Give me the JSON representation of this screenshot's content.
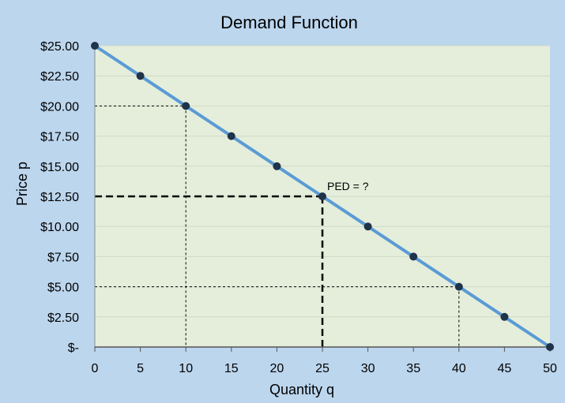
{
  "chart_data": {
    "type": "line",
    "title": "Demand Function",
    "xlabel": "Quantity q",
    "ylabel": "Price p",
    "xlim": [
      0,
      50
    ],
    "ylim": [
      0,
      25
    ],
    "x_ticks": [
      0,
      5,
      10,
      15,
      20,
      25,
      30,
      35,
      40,
      45,
      50
    ],
    "x_tick_labels": [
      "0",
      "5",
      "10",
      "15",
      "20",
      "25",
      "30",
      "35",
      "40",
      "45",
      "50"
    ],
    "y_ticks": [
      0,
      2.5,
      5,
      7.5,
      10,
      12.5,
      15,
      17.5,
      20,
      22.5,
      25
    ],
    "y_tick_labels": [
      "$-",
      "$2.50",
      "$5.00",
      "$7.50",
      "$10.00",
      "$12.50",
      "$15.00",
      "$17.50",
      "$20.00",
      "$22.50",
      "$25.00"
    ],
    "grid": true,
    "series": [
      {
        "x": [
          0,
          5,
          10,
          15,
          20,
          25,
          30,
          35,
          40,
          45,
          50
        ],
        "y": [
          25,
          22.5,
          20,
          17.5,
          15,
          12.5,
          10,
          7.5,
          5,
          2.5,
          0
        ]
      }
    ],
    "reference_points": [
      {
        "x": 10,
        "y": 20,
        "style": "thin"
      },
      {
        "x": 25,
        "y": 12.5,
        "style": "bold"
      },
      {
        "x": 40,
        "y": 5,
        "style": "thin"
      }
    ],
    "annotations": [
      {
        "text": "PED = ?",
        "x": 25,
        "y": 12.5
      }
    ],
    "colors": {
      "outer_background": "#bcd6ee",
      "plot_background": "#e4eedb",
      "line": "#5b9bd5",
      "marker": "#1f3349",
      "gridline": "#cfd9c8"
    }
  }
}
